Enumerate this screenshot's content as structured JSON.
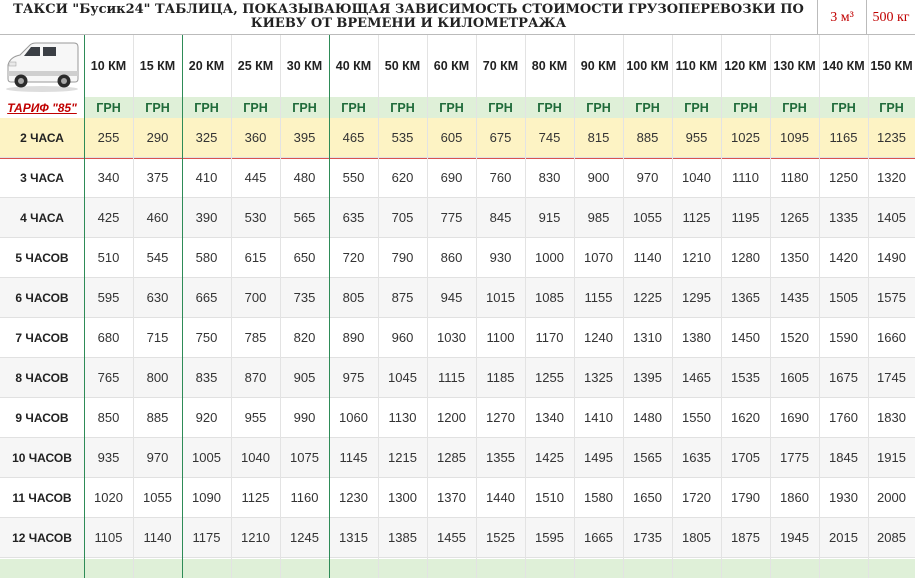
{
  "header": {
    "title": "ТАКСИ \"Бусик24\" ТАБЛИЦА, ПОКАЗЫВАЮЩАЯ ЗАВИСИМОСТЬ СТОИМОСТИ ГРУЗОПЕРЕВОЗКИ  ПО КИЕВУ ОТ ВРЕМЕНИ И КИЛОМЕТРАЖА",
    "volume": "3 м³",
    "weight": "500 кг"
  },
  "tariff_label": "ТАРИФ \"85\"",
  "distances": [
    "10 КМ",
    "15 КМ",
    "20 КМ",
    "25 КМ",
    "30 КМ",
    "40 КМ",
    "50 КМ",
    "60 КМ",
    "70 КМ",
    "80 КМ",
    "90 КМ",
    "100 КМ",
    "110 КМ",
    "120 КМ",
    "130 КМ",
    "140 КМ",
    "150 КМ"
  ],
  "currency": "ГРН",
  "rows": [
    {
      "label": "2 ЧАСА",
      "values": [
        "255",
        "290",
        "325",
        "360",
        "395",
        "465",
        "535",
        "605",
        "675",
        "745",
        "815",
        "885",
        "955",
        "1025",
        "1095",
        "1165",
        "1235"
      ]
    },
    {
      "label": "3 ЧАСА",
      "values": [
        "340",
        "375",
        "410",
        "445",
        "480",
        "550",
        "620",
        "690",
        "760",
        "830",
        "900",
        "970",
        "1040",
        "1110",
        "1180",
        "1250",
        "1320"
      ]
    },
    {
      "label": "4 ЧАСА",
      "values": [
        "425",
        "460",
        "390",
        "530",
        "565",
        "635",
        "705",
        "775",
        "845",
        "915",
        "985",
        "1055",
        "1125",
        "1195",
        "1265",
        "1335",
        "1405"
      ]
    },
    {
      "label": "5 ЧАСОВ",
      "values": [
        "510",
        "545",
        "580",
        "615",
        "650",
        "720",
        "790",
        "860",
        "930",
        "1000",
        "1070",
        "1140",
        "1210",
        "1280",
        "1350",
        "1420",
        "1490"
      ]
    },
    {
      "label": "6 ЧАСОВ",
      "values": [
        "595",
        "630",
        "665",
        "700",
        "735",
        "805",
        "875",
        "945",
        "1015",
        "1085",
        "1155",
        "1225",
        "1295",
        "1365",
        "1435",
        "1505",
        "1575"
      ]
    },
    {
      "label": "7 ЧАСОВ",
      "values": [
        "680",
        "715",
        "750",
        "785",
        "820",
        "890",
        "960",
        "1030",
        "1100",
        "1170",
        "1240",
        "1310",
        "1380",
        "1450",
        "1520",
        "1590",
        "1660"
      ]
    },
    {
      "label": "8 ЧАСОВ",
      "values": [
        "765",
        "800",
        "835",
        "870",
        "905",
        "975",
        "1045",
        "1115",
        "1185",
        "1255",
        "1325",
        "1395",
        "1465",
        "1535",
        "1605",
        "1675",
        "1745"
      ]
    },
    {
      "label": "9 ЧАСОВ",
      "values": [
        "850",
        "885",
        "920",
        "955",
        "990",
        "1060",
        "1130",
        "1200",
        "1270",
        "1340",
        "1410",
        "1480",
        "1550",
        "1620",
        "1690",
        "1760",
        "1830"
      ]
    },
    {
      "label": "10 ЧАСОВ",
      "values": [
        "935",
        "970",
        "1005",
        "1040",
        "1075",
        "1145",
        "1215",
        "1285",
        "1355",
        "1425",
        "1495",
        "1565",
        "1635",
        "1705",
        "1775",
        "1845",
        "1915"
      ]
    },
    {
      "label": "11 ЧАСОВ",
      "values": [
        "1020",
        "1055",
        "1090",
        "1125",
        "1160",
        "1230",
        "1300",
        "1370",
        "1440",
        "1510",
        "1580",
        "1650",
        "1720",
        "1790",
        "1860",
        "1930",
        "2000"
      ]
    },
    {
      "label": "12 ЧАСОВ",
      "values": [
        "1105",
        "1140",
        "1175",
        "1210",
        "1245",
        "1315",
        "1385",
        "1455",
        "1525",
        "1595",
        "1665",
        "1735",
        "1805",
        "1875",
        "1945",
        "2015",
        "2085"
      ]
    }
  ],
  "colors": {
    "accent_red": "#c00000",
    "header_green": "#dff0d8",
    "highlight_row": "#fdf3c4",
    "divider_green": "#2e8b57"
  }
}
